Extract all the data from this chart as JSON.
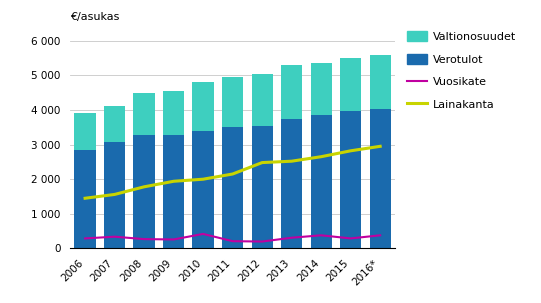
{
  "years": [
    "2006",
    "2007",
    "2008",
    "2009",
    "2010",
    "2011",
    "2012",
    "2013",
    "2014",
    "2015",
    "2016*"
  ],
  "verotulot": [
    2850,
    3060,
    3280,
    3280,
    3390,
    3510,
    3530,
    3750,
    3840,
    3960,
    4020
  ],
  "valtionosuudet": [
    1050,
    1060,
    1220,
    1280,
    1420,
    1440,
    1500,
    1560,
    1510,
    1530,
    1570
  ],
  "vuosikate": [
    290,
    340,
    270,
    260,
    420,
    210,
    200,
    310,
    380,
    290,
    380
  ],
  "lainakanta": [
    1450,
    1560,
    1780,
    1940,
    2000,
    2150,
    2480,
    2520,
    2650,
    2820,
    2950
  ],
  "bar_color_verotulot": "#1a6aad",
  "bar_color_valtionosuudet": "#3ecfbf",
  "line_color_vuosikate": "#c000a0",
  "line_color_lainakanta": "#c8d400",
  "ylabel": "€/asukas",
  "ylim": [
    0,
    6300
  ],
  "yticks": [
    0,
    1000,
    2000,
    3000,
    4000,
    5000,
    6000
  ],
  "ytick_labels": [
    "0",
    "1 000",
    "2 000",
    "3 000",
    "4 000",
    "5 000",
    "6 000"
  ],
  "legend_labels": [
    "Valtionosuudet",
    "Verotulot",
    "Vuosikate",
    "Lainakanta"
  ],
  "background_color": "#ffffff",
  "grid_color": "#c8c8c8"
}
